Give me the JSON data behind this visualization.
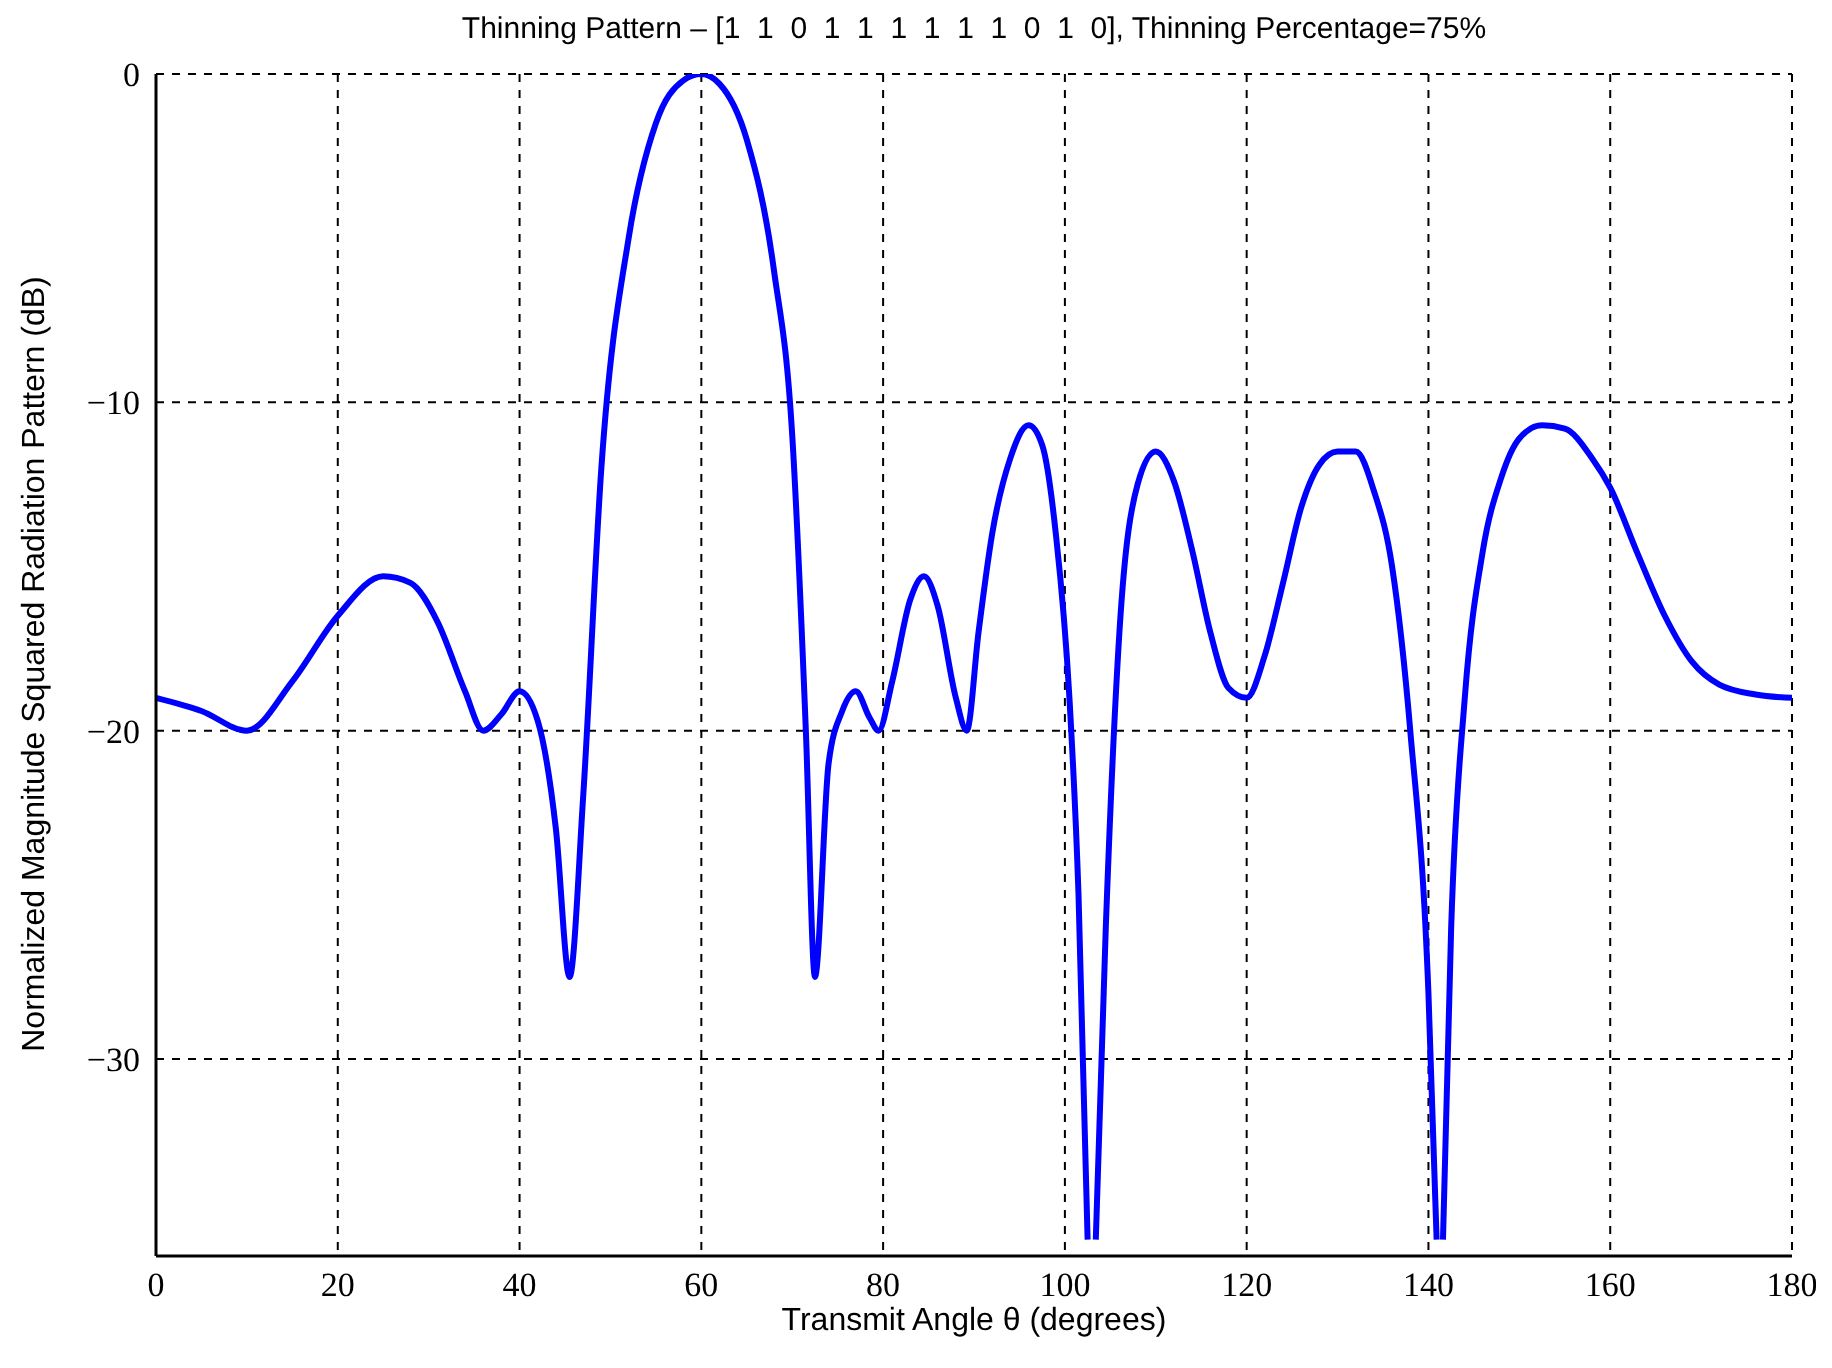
{
  "chart_data": {
    "type": "line",
    "title": "Thinning Pattern – [1  1  0  1  1  1  1  1  1  0  1  0], Thinning Percentage=75%",
    "xlabel": "Transmit Angle θ (degrees)",
    "ylabel": "Normalized Magnitude Squared Radiation Pattern (dB)",
    "x": [
      0,
      5,
      10,
      15,
      20,
      25,
      28,
      31,
      34,
      36,
      38,
      40,
      42,
      44,
      45.5,
      47,
      49,
      52,
      55,
      58,
      60,
      62,
      65,
      68,
      70,
      71.5,
      72.5,
      74,
      75.5,
      77,
      78.5,
      79.5,
      81,
      83,
      84.5,
      86,
      88,
      89.2,
      90.5,
      92,
      94,
      96,
      97.5,
      99,
      100.5,
      101.5,
      102.5,
      102.95,
      103.4,
      104.5,
      106,
      108,
      110,
      112,
      114,
      116,
      118,
      120,
      122,
      124,
      126,
      128,
      130,
      132,
      134,
      136,
      138,
      140,
      140.9,
      141.25,
      141.6,
      142.5,
      144,
      146,
      148,
      150,
      152.5,
      155,
      158,
      160,
      163,
      166,
      169,
      172,
      176,
      180
    ],
    "series": [
      {
        "color": "#0000ff",
        "values": [
          -19,
          -19.4,
          -20,
          -18.5,
          -16.5,
          -15.3,
          -15.5,
          -16.7,
          -18.8,
          -20,
          -19.5,
          -18.8,
          -19.7,
          -23,
          -27.5,
          -22,
          -12,
          -5,
          -1.5,
          -0.2,
          0,
          -0.3,
          -2,
          -6,
          -11,
          -20,
          -27.5,
          -21,
          -19.4,
          -18.8,
          -19.6,
          -20,
          -18.5,
          -16,
          -15.3,
          -16.2,
          -19,
          -20,
          -17,
          -14,
          -11.7,
          -10.7,
          -11.3,
          -14,
          -19,
          -25,
          -35.5,
          null,
          -35.5,
          -26,
          -17,
          -12.5,
          -11.5,
          -12.4,
          -14.5,
          -17,
          -18.7,
          -19,
          -17.7,
          -15.5,
          -13.2,
          -11.9,
          -11.5,
          -11.5,
          -12.7,
          -15,
          -20,
          -28,
          -35.5,
          null,
          -35.5,
          -26,
          -19,
          -14.5,
          -12.3,
          -11.1,
          -10.7,
          -10.8,
          -11.7,
          -12.6,
          -14.6,
          -16.5,
          -17.9,
          -18.6,
          -18.9,
          -19
        ]
      }
    ],
    "xlim": [
      0,
      180
    ],
    "xticks": [
      0,
      20,
      40,
      60,
      80,
      100,
      120,
      140,
      160,
      180
    ],
    "ylim": [
      -36,
      0
    ],
    "yticks": [
      {
        "value": -30,
        "label": "−30"
      },
      {
        "value": -20,
        "label": "−20"
      },
      {
        "value": -10,
        "label": "−10"
      },
      0
    ],
    "grid": true,
    "line_style": "solid",
    "marker": "none"
  }
}
